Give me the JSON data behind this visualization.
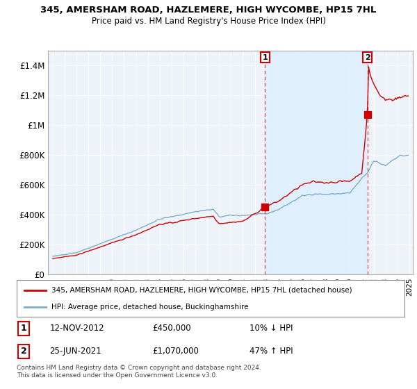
{
  "title": "345, AMERSHAM ROAD, HAZLEMERE, HIGH WYCOMBE, HP15 7HL",
  "subtitle": "Price paid vs. HM Land Registry's House Price Index (HPI)",
  "ylim": [
    0,
    1500000
  ],
  "yticks": [
    0,
    200000,
    400000,
    600000,
    800000,
    1000000,
    1200000,
    1400000
  ],
  "ytick_labels": [
    "£0",
    "£200K",
    "£400K",
    "£600K",
    "£800K",
    "£1M",
    "£1.2M",
    "£1.4M"
  ],
  "sale1_year": 2012.87,
  "sale1_price": 450000,
  "sale2_year": 2021.48,
  "sale2_price": 1070000,
  "sale1_date": "12-NOV-2012",
  "sale1_price_str": "£450,000",
  "sale1_hpi_diff": "10% ↓ HPI",
  "sale2_date": "25-JUN-2021",
  "sale2_price_str": "£1,070,000",
  "sale2_hpi_diff": "47% ↑ HPI",
  "red_color": "#cc0000",
  "blue_color": "#7aadcc",
  "shade_color": "#ddeeff",
  "legend_red_label": "345, AMERSHAM ROAD, HAZLEMERE, HIGH WYCOMBE, HP15 7HL (detached house)",
  "legend_blue_label": "HPI: Average price, detached house, Buckinghamshire",
  "footer": "Contains HM Land Registry data © Crown copyright and database right 2024.\nThis data is licensed under the Open Government Licence v3.0.",
  "background_color": "#ffffff",
  "plot_bg_color": "#eef3fa"
}
